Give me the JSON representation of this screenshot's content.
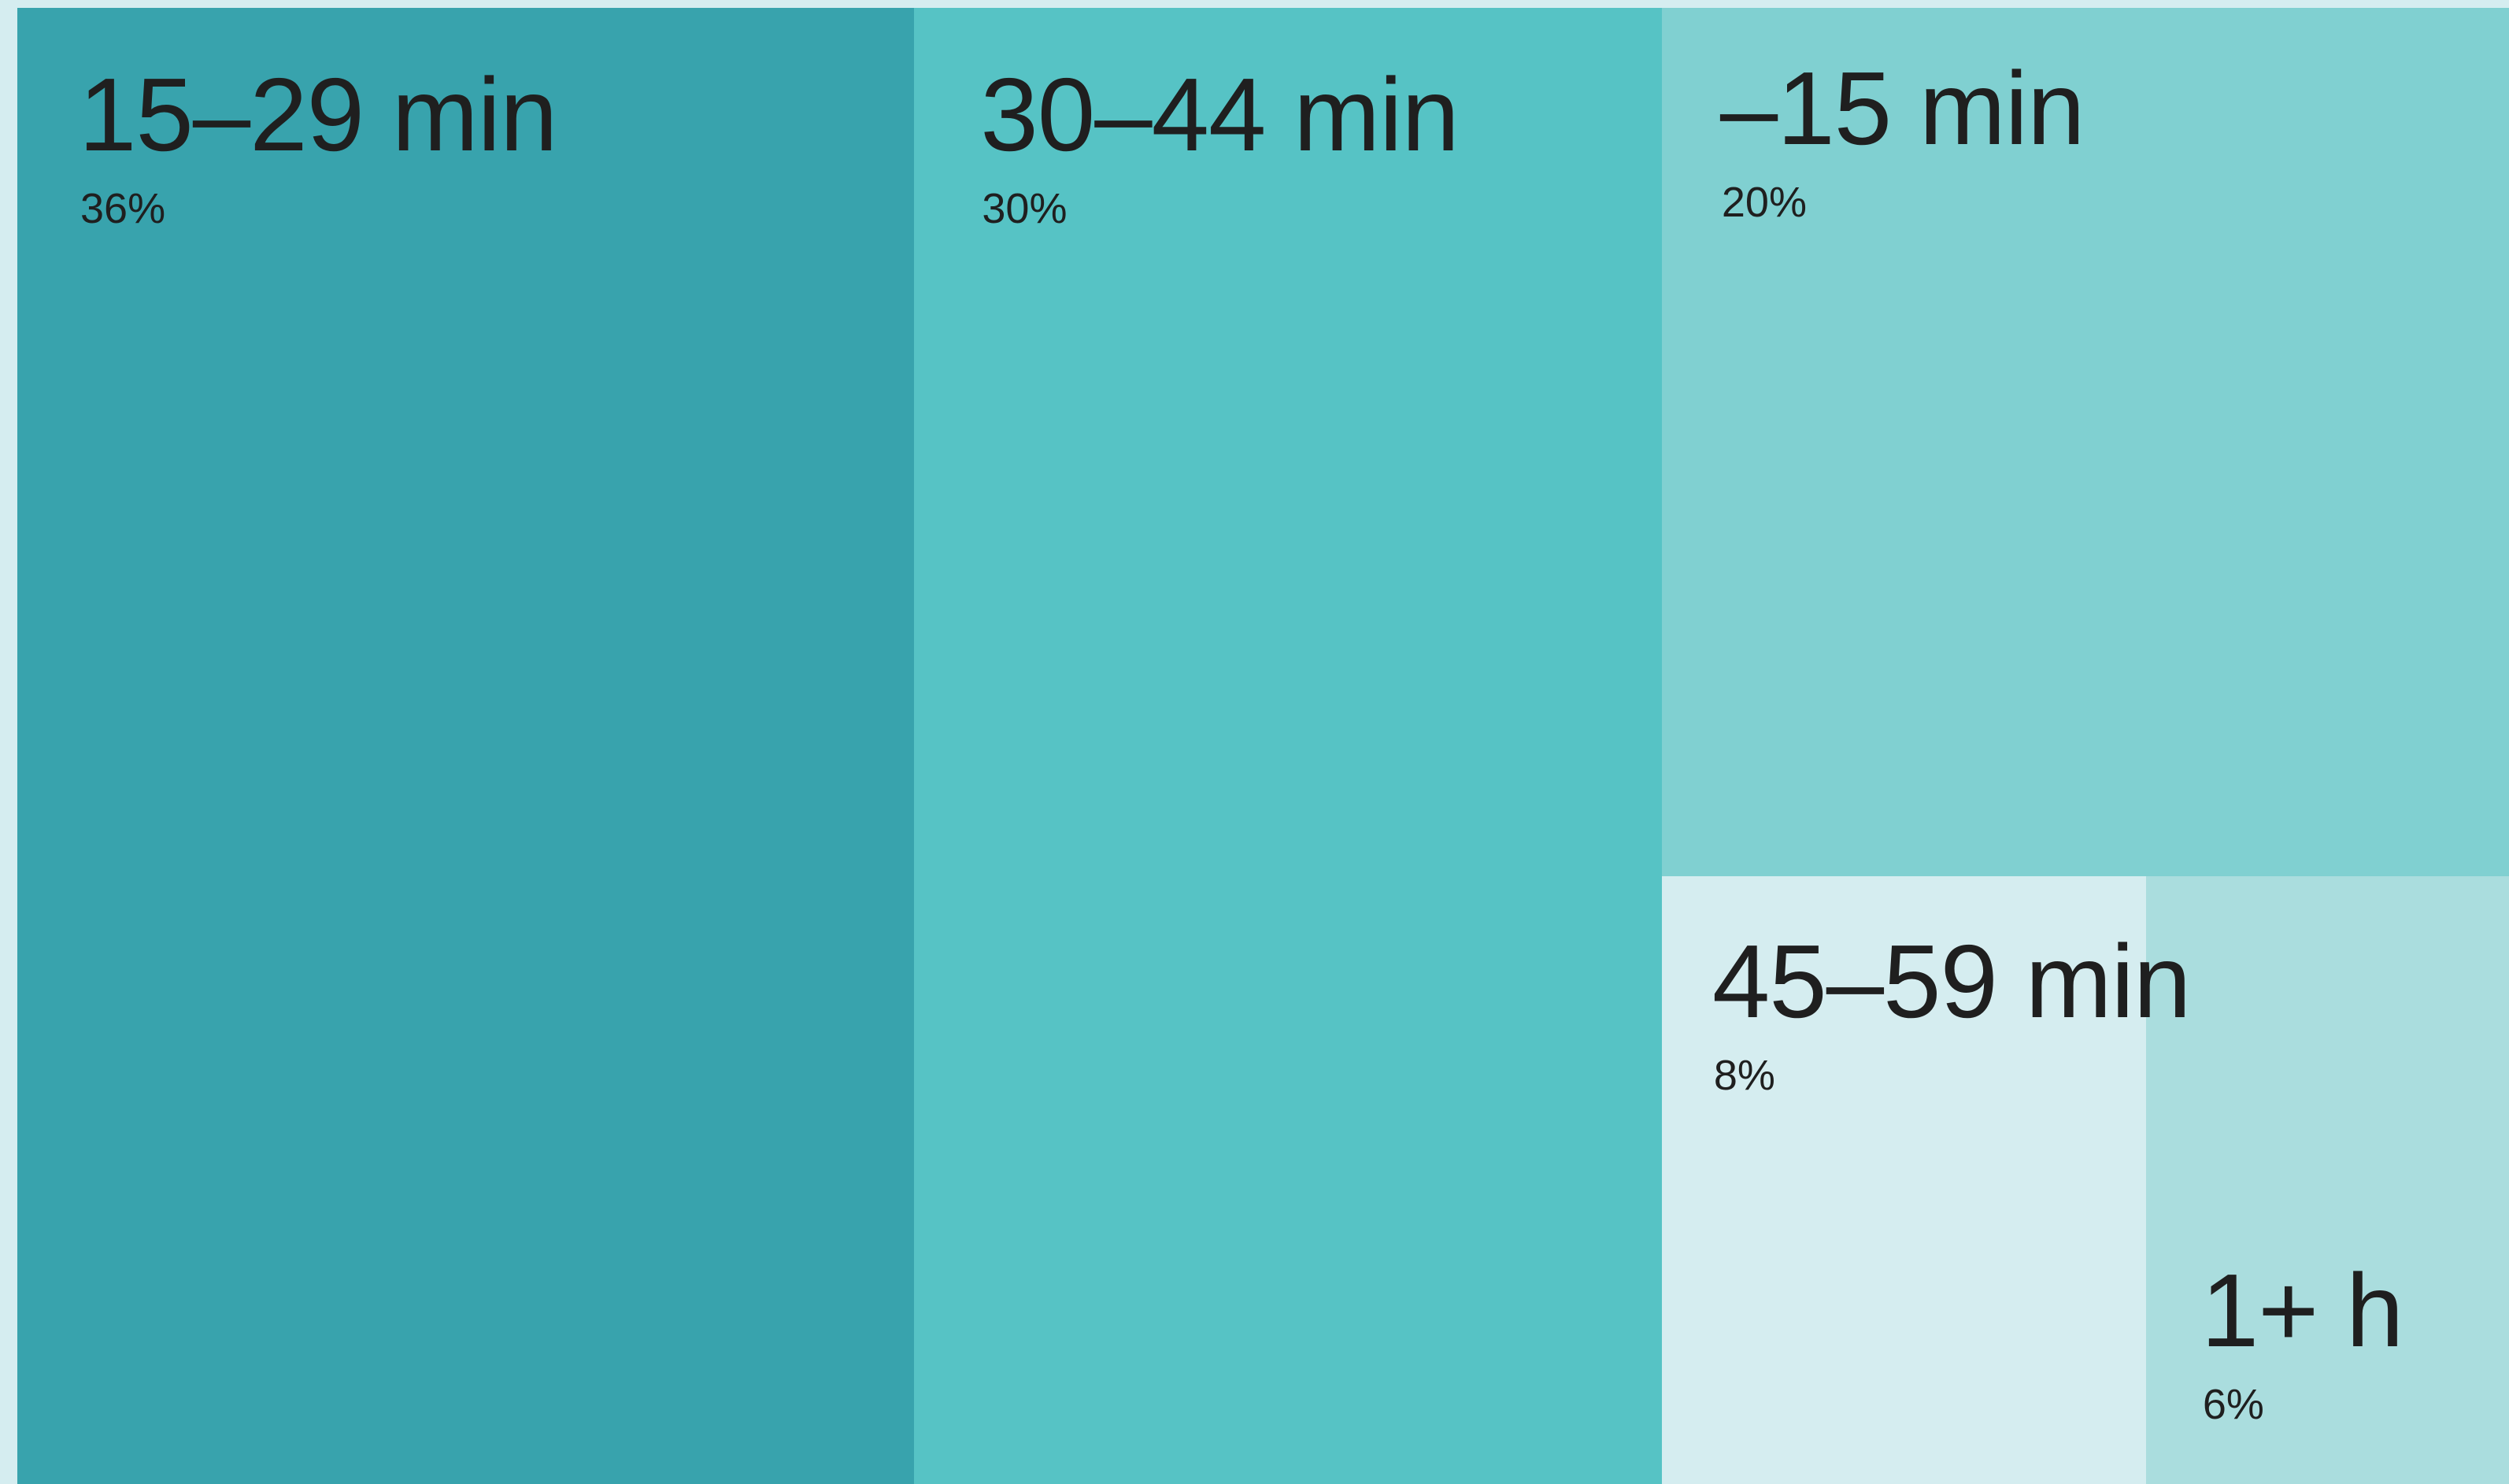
{
  "chart_data": {
    "type": "treemap",
    "title": "",
    "items": [
      {
        "label": "15–29 min",
        "value": 36,
        "value_label": "36%",
        "color": "#38a3ad"
      },
      {
        "label": "30–44 min",
        "value": 30,
        "value_label": "30%",
        "color": "#56c3c5"
      },
      {
        "label": "–15 min",
        "value": 20,
        "value_label": "20%",
        "color": "#80d0d1"
      },
      {
        "label": "45–59 min",
        "value": 8,
        "value_label": "8%",
        "color": "#d5edf0"
      },
      {
        "label": "1+ h",
        "value": 6,
        "value_label": "6%",
        "color": "#aaddde"
      }
    ]
  }
}
